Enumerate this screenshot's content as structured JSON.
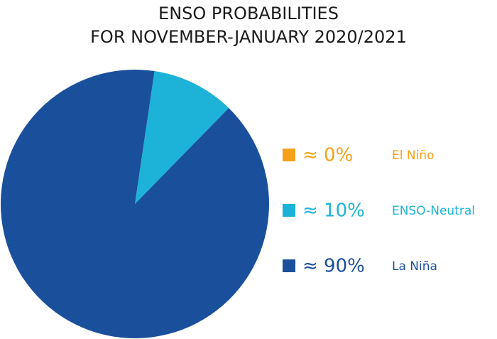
{
  "chart_data": {
    "type": "pie",
    "title": [
      "ENSO PROBABILITIES",
      "FOR NOVEMBER-JANUARY 2020/2021"
    ],
    "categories": [
      "El Niño",
      "ENSO-Neutral",
      "La Niña"
    ],
    "values": [
      0,
      10,
      90
    ],
    "value_labels": [
      "≈ 0%",
      "≈ 10%",
      "≈ 90%"
    ],
    "colors": [
      "#f4a11a",
      "#1db3d8",
      "#1a4f9c"
    ],
    "legend": "right"
  }
}
